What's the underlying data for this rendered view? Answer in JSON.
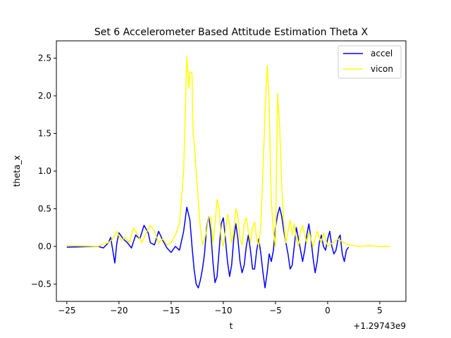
{
  "chart_data": {
    "type": "line",
    "title": "Set 6 Accelerometer Based Attitude Estimation Theta X",
    "xlabel": "t",
    "ylabel": "theta_x",
    "x_offset_label": "+1.29743e9",
    "xlim": [
      -26,
      7.5
    ],
    "ylim": [
      -0.73,
      2.73
    ],
    "xticks": [
      -25,
      -20,
      -15,
      -10,
      -5,
      0,
      5
    ],
    "xtick_labels": [
      "−25",
      "−20",
      "−15",
      "−10",
      "−5",
      "0",
      "5"
    ],
    "yticks": [
      -0.5,
      0.0,
      0.5,
      1.0,
      1.5,
      2.0,
      2.5
    ],
    "ytick_labels": [
      "−0.5",
      "0.0",
      "0.5",
      "1.0",
      "1.5",
      "2.0",
      "2.5"
    ],
    "grid": false,
    "legend_position": "top-right",
    "series": [
      {
        "name": "accel",
        "color": "#0000ff",
        "x": [
          -25,
          -22,
          -21.5,
          -21,
          -20.8,
          -20.6,
          -20.4,
          -20.2,
          -20.0,
          -19.6,
          -19.2,
          -18.8,
          -18.4,
          -18.0,
          -17.6,
          -17.2,
          -17.0,
          -16.6,
          -16.2,
          -15.8,
          -15.4,
          -15.0,
          -14.6,
          -14.2,
          -13.8,
          -13.5,
          -13.2,
          -13.0,
          -12.8,
          -12.6,
          -12.4,
          -12.2,
          -12.0,
          -11.8,
          -11.6,
          -11.4,
          -11.2,
          -11.0,
          -10.8,
          -10.6,
          -10.4,
          -10.2,
          -10.0,
          -9.8,
          -9.6,
          -9.4,
          -9.2,
          -9.0,
          -8.8,
          -8.6,
          -8.4,
          -8.2,
          -8.0,
          -7.8,
          -7.6,
          -7.4,
          -7.2,
          -7.0,
          -6.8,
          -6.6,
          -6.4,
          -6.2,
          -6.0,
          -5.8,
          -5.6,
          -5.4,
          -5.2,
          -5.0,
          -4.8,
          -4.6,
          -4.4,
          -4.2,
          -4.0,
          -3.8,
          -3.6,
          -3.4,
          -3.2,
          -3.0,
          -2.8,
          -2.6,
          -2.4,
          -2.2,
          -2.0,
          -1.8,
          -1.6,
          -1.4,
          -1.2,
          -1.0,
          -0.8,
          -0.6,
          -0.4,
          -0.2,
          0.0,
          0.2,
          0.4,
          0.6,
          0.8,
          1.0,
          1.2,
          1.4,
          1.6,
          1.8,
          2.0
        ],
        "values": [
          -0.01,
          0.0,
          -0.02,
          0.05,
          0.12,
          -0.05,
          -0.22,
          0.05,
          0.18,
          0.1,
          0.05,
          -0.02,
          0.15,
          0.1,
          0.28,
          0.18,
          0.05,
          0.02,
          0.2,
          0.08,
          -0.02,
          -0.08,
          0.0,
          -0.05,
          0.2,
          0.52,
          0.35,
          0.0,
          -0.3,
          -0.5,
          -0.55,
          -0.45,
          -0.3,
          -0.1,
          0.25,
          0.4,
          0.2,
          -0.2,
          -0.48,
          -0.4,
          -0.05,
          0.3,
          0.38,
          0.1,
          -0.2,
          -0.4,
          -0.25,
          0.1,
          0.3,
          0.1,
          -0.2,
          -0.35,
          -0.25,
          0.0,
          0.15,
          -0.05,
          -0.3,
          -0.3,
          -0.05,
          0.1,
          -0.1,
          -0.35,
          -0.55,
          -0.35,
          -0.1,
          -0.2,
          -0.05,
          0.25,
          0.42,
          0.52,
          0.4,
          0.2,
          0.05,
          -0.1,
          -0.3,
          -0.25,
          0.0,
          0.25,
          0.1,
          -0.05,
          -0.2,
          -0.05,
          0.15,
          0.3,
          0.1,
          -0.15,
          -0.35,
          -0.2,
          0.05,
          0.15,
          0.0,
          -0.05,
          0.1,
          0.2,
          0.0,
          -0.1,
          -0.05,
          0.1,
          0.15,
          -0.1,
          -0.2,
          -0.05,
          -0.01
        ]
      },
      {
        "name": "vicon",
        "color": "#ffff00",
        "x": [
          -25,
          -22,
          -21.5,
          -21,
          -20.6,
          -20.2,
          -19.8,
          -19.4,
          -19.0,
          -18.6,
          -18.2,
          -17.8,
          -17.4,
          -17.0,
          -16.6,
          -16.2,
          -15.8,
          -15.4,
          -15.0,
          -14.6,
          -14.2,
          -13.8,
          -13.5,
          -13.3,
          -13.2,
          -13.0,
          -12.9,
          -12.8,
          -12.6,
          -12.4,
          -12.2,
          -12.0,
          -11.8,
          -11.6,
          -11.4,
          -11.2,
          -11.0,
          -10.8,
          -10.6,
          -10.4,
          -10.2,
          -10.0,
          -9.8,
          -9.6,
          -9.4,
          -9.2,
          -9.0,
          -8.8,
          -8.6,
          -8.4,
          -8.2,
          -8.0,
          -7.8,
          -7.6,
          -7.4,
          -7.2,
          -7.0,
          -6.8,
          -6.6,
          -6.4,
          -6.2,
          -6.0,
          -5.8,
          -5.6,
          -5.5,
          -5.4,
          -5.2,
          -5.0,
          -4.8,
          -4.6,
          -4.4,
          -4.2,
          -4.0,
          -3.8,
          -3.6,
          -3.4,
          -3.2,
          -3.0,
          -2.8,
          -2.6,
          -2.4,
          -2.2,
          -2.0,
          -1.8,
          -1.6,
          -1.4,
          -1.2,
          -1.0,
          -0.8,
          -0.6,
          -0.4,
          -0.2,
          0.0,
          0.2,
          0.5,
          1.0,
          1.5,
          2.0,
          3.0,
          4.0,
          5.0,
          6.0
        ],
        "values": [
          0.01,
          0.0,
          0.03,
          0.05,
          0.1,
          0.2,
          0.08,
          0.12,
          0.05,
          0.25,
          0.15,
          0.05,
          0.18,
          0.28,
          0.2,
          0.05,
          0.1,
          0.02,
          0.05,
          0.15,
          0.3,
          1.0,
          2.52,
          2.1,
          2.32,
          2.3,
          1.5,
          1.4,
          1.0,
          0.6,
          0.25,
          0.02,
          0.1,
          0.2,
          0.4,
          0.38,
          0.05,
          0.3,
          0.62,
          0.5,
          0.1,
          0.0,
          0.2,
          0.42,
          0.3,
          0.05,
          0.2,
          0.5,
          0.4,
          0.1,
          0.02,
          0.3,
          0.38,
          0.2,
          0.05,
          0.25,
          0.32,
          0.1,
          0.0,
          0.3,
          1.0,
          1.8,
          2.4,
          1.9,
          1.2,
          0.6,
          0.2,
          0.0,
          2.03,
          1.6,
          0.8,
          0.3,
          0.05,
          0.2,
          0.35,
          0.15,
          0.3,
          0.1,
          0.0,
          0.2,
          0.28,
          0.15,
          0.05,
          0.2,
          0.1,
          0.0,
          0.1,
          0.2,
          0.12,
          0.05,
          0.18,
          0.1,
          0.0,
          0.02,
          0.05,
          0.1,
          0.05,
          0.02,
          0.0,
          0.01,
          0.0,
          0.0
        ]
      }
    ]
  }
}
